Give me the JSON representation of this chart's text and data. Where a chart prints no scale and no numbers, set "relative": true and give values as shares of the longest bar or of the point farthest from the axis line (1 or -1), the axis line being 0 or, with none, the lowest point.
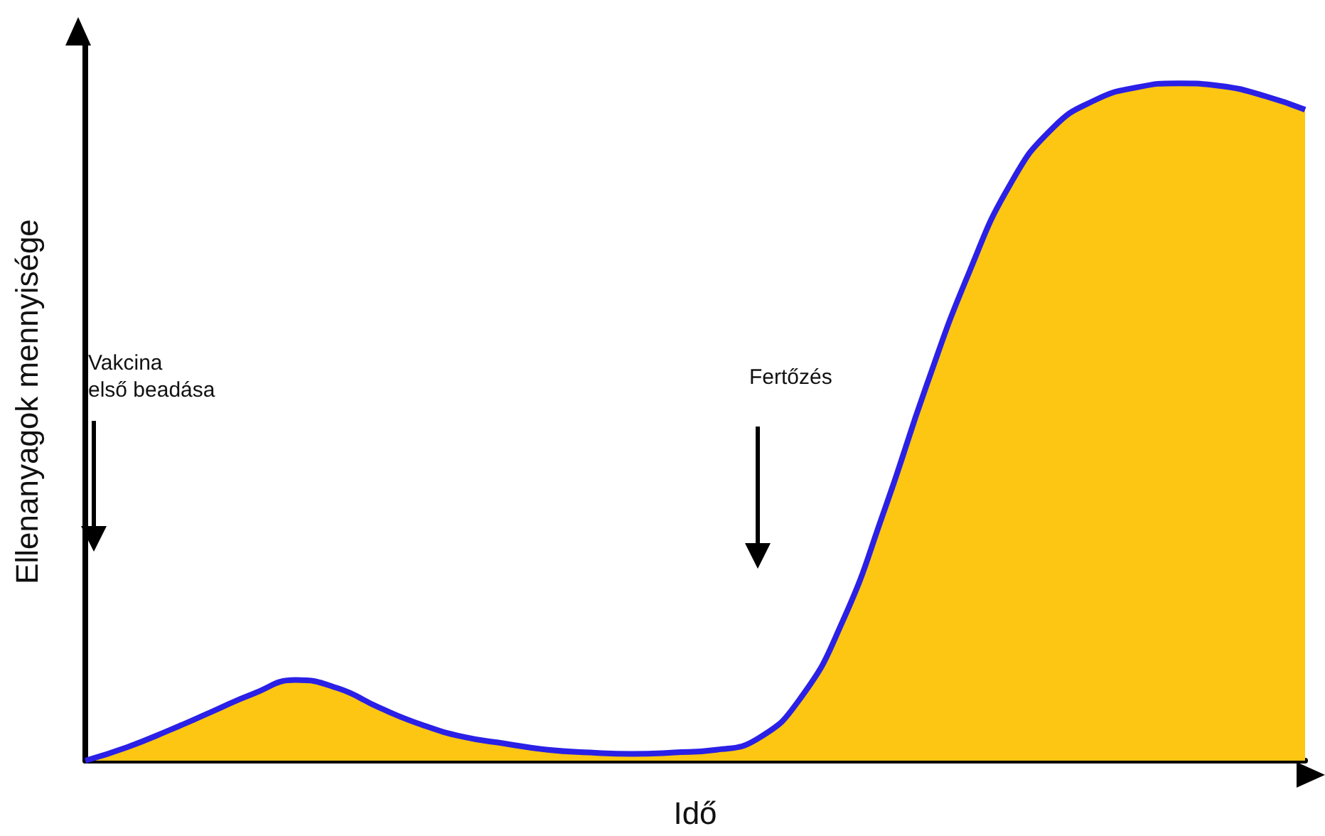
{
  "chart_data": {
    "type": "area",
    "relative": true,
    "xlabel": "Idő",
    "ylabel": "Ellenanyagok mennyisége",
    "categories": [
      null,
      null,
      null,
      null,
      null,
      null,
      null,
      null,
      null,
      null,
      null,
      null,
      null,
      null,
      null,
      null,
      null,
      null,
      null,
      null,
      null,
      null,
      null,
      null,
      null,
      null,
      null,
      null,
      null,
      null
    ],
    "series": [
      {
        "color": "#fdc613",
        "values": [
          0,
          0.02,
          0.045,
          0.072,
          0.099,
          0.119,
          0.107,
          0.078,
          0.053,
          0.035,
          0.025,
          0.016,
          0.012,
          0.01,
          0.012,
          0.016,
          0.033,
          0.092,
          0.205,
          0.37,
          0.554,
          0.719,
          0.852,
          0.934,
          0.975,
          0.994,
          1,
          0.996,
          0.982,
          0.961
        ]
      }
    ],
    "annotations": [
      "Vakcina\nelső beadása",
      "Fertőzés"
    ]
  }
}
